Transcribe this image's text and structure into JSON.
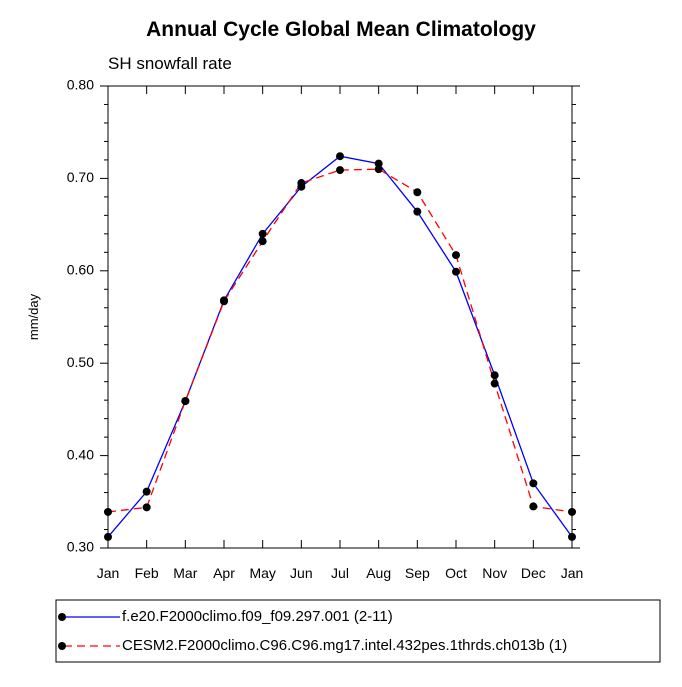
{
  "chart_data": {
    "type": "line",
    "title": "Annual Cycle Global Mean Climatology",
    "subtitle": "SH snowfall rate",
    "xlabel": "",
    "ylabel": "mm/day",
    "ylim": [
      0.3,
      0.8
    ],
    "y_ticks": [
      "0.30",
      "0.40",
      "0.50",
      "0.60",
      "0.70",
      "0.80"
    ],
    "categories": [
      "Jan",
      "Feb",
      "Mar",
      "Apr",
      "May",
      "Jun",
      "Jul",
      "Aug",
      "Sep",
      "Oct",
      "Nov",
      "Dec",
      "Jan"
    ],
    "series": [
      {
        "name": "f.e20.F2000climo.f09_f09.297.001 (2-11)",
        "color": "#0000ff",
        "dash": "solid",
        "values": [
          0.312,
          0.361,
          0.459,
          0.568,
          0.64,
          0.691,
          0.724,
          0.716,
          0.664,
          0.599,
          0.487,
          0.37,
          0.312
        ]
      },
      {
        "name": "CESM2.F2000climo.C96.C96.mg17.intel.432pes.1thrds.ch013b (1)",
        "color": "#ff0000",
        "dash": "dashed",
        "values": [
          0.339,
          0.344,
          0.459,
          0.567,
          0.632,
          0.695,
          0.709,
          0.71,
          0.685,
          0.617,
          0.478,
          0.345,
          0.339
        ]
      }
    ],
    "marker_color": "#000000",
    "legend_position": "bottom",
    "grid": false
  }
}
